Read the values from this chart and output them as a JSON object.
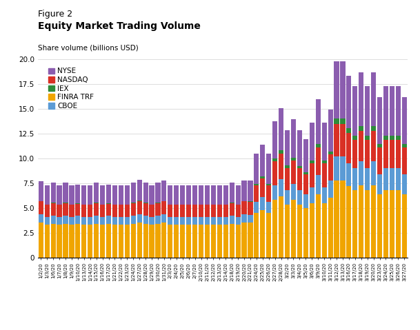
{
  "title_line1": "Figure 2",
  "title_line2": "Equity Market Trading Volume",
  "ylabel": "Share volume (billions USD)",
  "ylim": [
    0,
    20.0
  ],
  "yticks": [
    0,
    2.5,
    5.0,
    7.5,
    10.0,
    12.5,
    15.0,
    17.5,
    20.0
  ],
  "colors": {
    "NYSE": "#8B5DAF",
    "NASDAQ": "#D93025",
    "IEX": "#2E8B3A",
    "FINRA TRF": "#F0A500",
    "CBOE": "#5B9BD5"
  },
  "dates": [
    "1/2/20",
    "1/3/20",
    "1/6/20",
    "1/7/20",
    "1/8/20",
    "1/9/20",
    "1/10/20",
    "1/13/20",
    "1/14/20",
    "1/15/20",
    "1/16/20",
    "1/17/20",
    "1/21/20",
    "1/22/20",
    "1/23/20",
    "1/24/20",
    "1/27/20",
    "1/28/20",
    "1/29/20",
    "1/30/20",
    "1/31/20",
    "2/3/20",
    "2/4/20",
    "2/5/20",
    "2/6/20",
    "2/7/20",
    "2/10/20",
    "2/11/20",
    "2/12/20",
    "2/13/20",
    "2/14/20",
    "2/18/20",
    "2/19/20",
    "2/20/20",
    "2/21/20",
    "2/24/20",
    "2/25/20",
    "2/26/20",
    "2/27/20",
    "2/28/20",
    "3/2/20",
    "3/3/20",
    "3/4/20",
    "3/5/20",
    "3/6/20",
    "3/9/20",
    "3/10/20",
    "3/11/20",
    "3/12/20",
    "3/13/20",
    "3/16/20",
    "3/17/20",
    "3/18/20",
    "3/19/20",
    "3/20/20",
    "3/23/20",
    "3/24/20",
    "3/25/20",
    "3/26/20",
    "3/27/20"
  ],
  "FINRA TRF": [
    3.5,
    3.3,
    3.4,
    3.3,
    3.4,
    3.3,
    3.4,
    3.3,
    3.3,
    3.4,
    3.3,
    3.4,
    3.3,
    3.3,
    3.3,
    3.4,
    3.5,
    3.4,
    3.3,
    3.4,
    3.5,
    3.3,
    3.3,
    3.3,
    3.3,
    3.3,
    3.3,
    3.3,
    3.3,
    3.3,
    3.3,
    3.4,
    3.3,
    3.5,
    3.5,
    4.5,
    4.8,
    4.5,
    5.8,
    6.2,
    5.3,
    5.8,
    5.3,
    5.0,
    5.5,
    6.4,
    5.5,
    6.0,
    7.8,
    7.8,
    7.2,
    6.8,
    7.3,
    6.8,
    7.3,
    6.4,
    6.8,
    6.8,
    6.8,
    6.4
  ],
  "CBOE": [
    0.85,
    0.8,
    0.8,
    0.8,
    0.8,
    0.8,
    0.8,
    0.8,
    0.8,
    0.8,
    0.8,
    0.8,
    0.8,
    0.8,
    0.8,
    0.8,
    0.85,
    0.8,
    0.8,
    0.8,
    0.85,
    0.8,
    0.8,
    0.8,
    0.8,
    0.8,
    0.8,
    0.8,
    0.8,
    0.8,
    0.8,
    0.8,
    0.8,
    0.85,
    0.8,
    1.1,
    1.3,
    1.1,
    1.5,
    1.7,
    1.5,
    1.6,
    1.5,
    1.4,
    1.6,
    1.9,
    1.6,
    1.8,
    2.4,
    2.4,
    2.3,
    2.2,
    2.4,
    2.2,
    2.4,
    2.0,
    2.2,
    2.2,
    2.2,
    2.0
  ],
  "NASDAQ": [
    1.3,
    1.2,
    1.3,
    1.2,
    1.3,
    1.2,
    1.2,
    1.2,
    1.2,
    1.3,
    1.2,
    1.2,
    1.2,
    1.2,
    1.2,
    1.3,
    1.3,
    1.3,
    1.2,
    1.3,
    1.3,
    1.2,
    1.2,
    1.2,
    1.2,
    1.2,
    1.2,
    1.2,
    1.2,
    1.2,
    1.2,
    1.3,
    1.2,
    1.3,
    1.3,
    1.7,
    1.9,
    1.7,
    2.4,
    2.6,
    2.2,
    2.4,
    2.2,
    2.0,
    2.4,
    2.8,
    2.4,
    2.6,
    3.3,
    3.3,
    3.1,
    2.9,
    3.1,
    2.9,
    3.1,
    2.7,
    2.9,
    2.9,
    2.9,
    2.7
  ],
  "IEX": [
    0.05,
    0.05,
    0.05,
    0.05,
    0.05,
    0.05,
    0.05,
    0.05,
    0.05,
    0.05,
    0.05,
    0.05,
    0.05,
    0.05,
    0.05,
    0.05,
    0.07,
    0.05,
    0.05,
    0.05,
    0.05,
    0.05,
    0.05,
    0.05,
    0.05,
    0.05,
    0.05,
    0.05,
    0.05,
    0.05,
    0.05,
    0.05,
    0.05,
    0.05,
    0.05,
    0.15,
    0.18,
    0.15,
    0.28,
    0.35,
    0.28,
    0.28,
    0.25,
    0.22,
    0.28,
    0.35,
    0.28,
    0.32,
    0.5,
    0.5,
    0.45,
    0.42,
    0.48,
    0.42,
    0.48,
    0.38,
    0.42,
    0.42,
    0.42,
    0.38
  ],
  "NYSE": [
    2.0,
    1.9,
    2.0,
    1.9,
    2.0,
    1.9,
    1.9,
    1.9,
    1.9,
    2.0,
    1.9,
    1.9,
    1.9,
    1.9,
    1.9,
    2.0,
    2.1,
    2.0,
    1.9,
    2.0,
    2.1,
    1.9,
    1.9,
    1.9,
    1.9,
    1.9,
    1.9,
    1.9,
    1.9,
    1.9,
    1.9,
    2.0,
    1.9,
    2.1,
    2.1,
    3.0,
    3.2,
    3.0,
    3.8,
    4.2,
    3.6,
    3.9,
    3.6,
    3.3,
    3.8,
    4.5,
    3.8,
    4.2,
    5.8,
    5.8,
    5.3,
    5.0,
    5.4,
    5.0,
    5.4,
    4.7,
    5.0,
    5.0,
    5.0,
    4.7
  ],
  "background_color": "#ffffff",
  "grid_color": "#d0d0d0"
}
